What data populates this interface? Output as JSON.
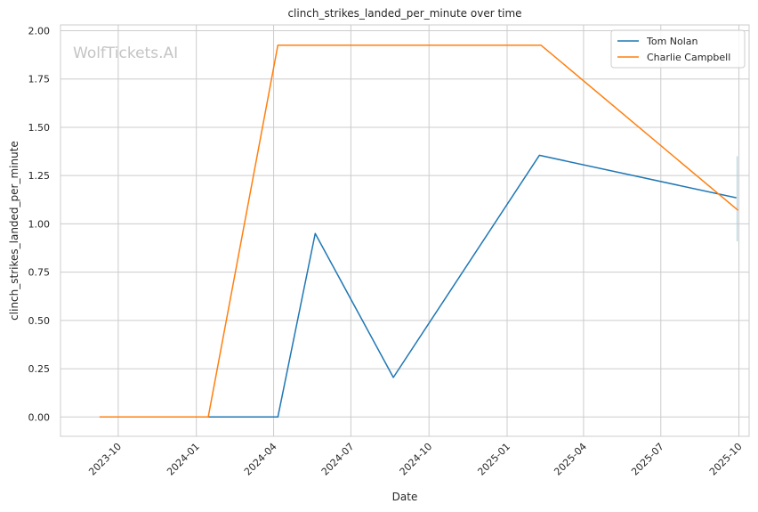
{
  "chart_data": {
    "type": "line",
    "title": "clinch_strikes_landed_per_minute over time",
    "xlabel": "Date",
    "ylabel": "clinch_strikes_landed_per_minute",
    "watermark": "WolfTickets.AI",
    "x_tick_labels": [
      "2023-10",
      "2024-01",
      "2024-04",
      "2024-07",
      "2024-10",
      "2025-01",
      "2025-04",
      "2025-07",
      "2025-10"
    ],
    "x_tick_dates": [
      "2023-10-01",
      "2024-01-01",
      "2024-04-01",
      "2024-07-01",
      "2024-10-01",
      "2025-01-01",
      "2025-04-01",
      "2025-07-01",
      "2025-10-01"
    ],
    "xlim": [
      "2023-07-25",
      "2025-10-13"
    ],
    "y_ticks": [
      "0.00",
      "0.25",
      "0.50",
      "0.75",
      "1.00",
      "1.25",
      "1.50",
      "1.75",
      "2.00"
    ],
    "ylim": [
      -0.1,
      2.03
    ],
    "grid": true,
    "legend_position": "top-right",
    "series": [
      {
        "name": "Tom Nolan",
        "color": "#1f77b4",
        "points": [
          {
            "x": "2024-01-15",
            "y": 0.0
          },
          {
            "x": "2024-04-06",
            "y": 0.0
          },
          {
            "x": "2024-05-20",
            "y": 0.95
          },
          {
            "x": "2024-08-20",
            "y": 0.205
          },
          {
            "x": "2025-02-08",
            "y": 1.355
          },
          {
            "x": "2025-09-28",
            "y": 1.135
          }
        ]
      },
      {
        "name": "Charlie Campbell",
        "color": "#ff7f0e",
        "points": [
          {
            "x": "2023-09-09",
            "y": 0.0
          },
          {
            "x": "2024-01-15",
            "y": 0.0
          },
          {
            "x": "2024-04-06",
            "y": 1.925
          },
          {
            "x": "2025-02-10",
            "y": 1.925
          },
          {
            "x": "2025-09-30",
            "y": 1.07
          }
        ]
      }
    ],
    "error_band": {
      "color": "#a8d4e0",
      "x": "2025-09-29",
      "y_low": 0.91,
      "y_high": 1.35
    }
  }
}
